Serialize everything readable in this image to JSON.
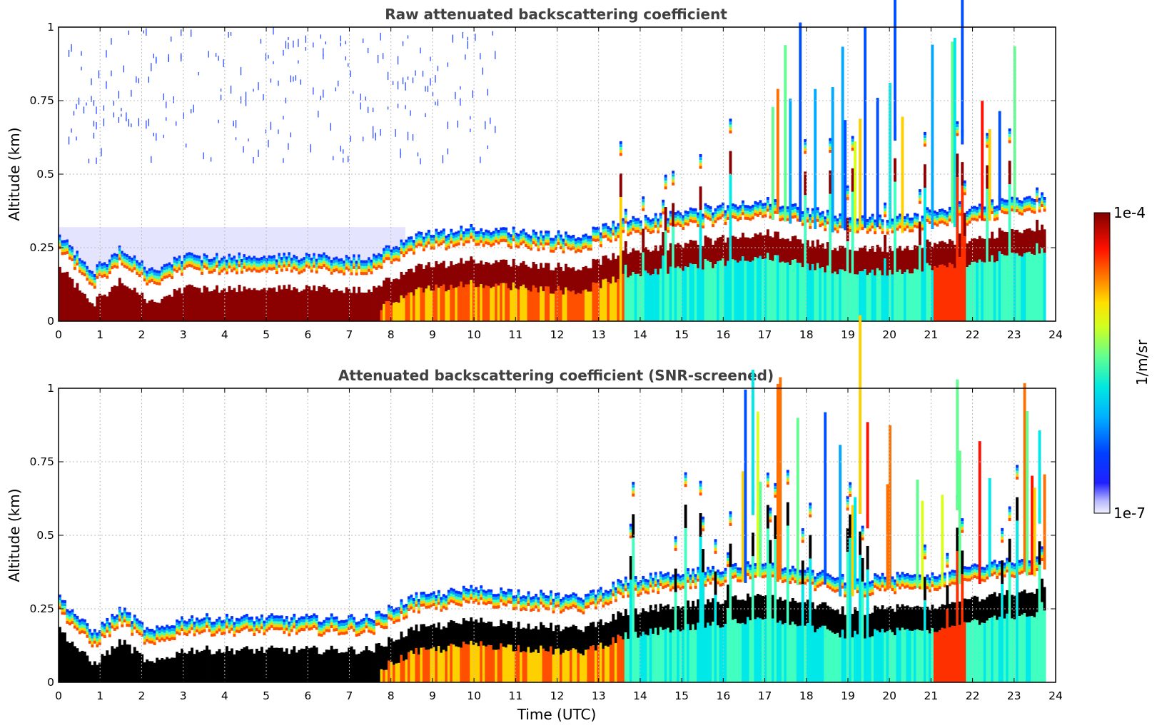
{
  "chart_data": [
    {
      "type": "heatmap",
      "title": "Raw attenuated backscattering coefficient",
      "xlabel": "",
      "ylabel": "Altitude (km)",
      "xlim": [
        0,
        24
      ],
      "ylim": [
        0,
        1
      ],
      "xticks": [
        "0",
        "1",
        "2",
        "3",
        "4",
        "5",
        "6",
        "7",
        "8",
        "9",
        "10",
        "11",
        "12",
        "13",
        "14",
        "15",
        "16",
        "17",
        "18",
        "19",
        "20",
        "21",
        "22",
        "23",
        "24"
      ],
      "yticks": [
        "0",
        "0.25",
        "0.5",
        "0.75",
        "1"
      ],
      "grid": true,
      "screening": "raw",
      "layer_top_km": [
        {
          "t": 0,
          "h": 0.24
        },
        {
          "t": 0.8,
          "h": 0.12
        },
        {
          "t": 1.5,
          "h": 0.2
        },
        {
          "t": 2.2,
          "h": 0.12
        },
        {
          "t": 3,
          "h": 0.17
        },
        {
          "t": 5,
          "h": 0.17
        },
        {
          "t": 7.5,
          "h": 0.17
        },
        {
          "t": 8.5,
          "h": 0.24
        },
        {
          "t": 10,
          "h": 0.27
        },
        {
          "t": 12.5,
          "h": 0.24
        },
        {
          "t": 13.7,
          "h": 0.3
        },
        {
          "t": 15.5,
          "h": 0.33
        },
        {
          "t": 17,
          "h": 0.36
        },
        {
          "t": 19,
          "h": 0.3
        },
        {
          "t": 21,
          "h": 0.32
        },
        {
          "t": 23.7,
          "h": 0.38
        }
      ]
    },
    {
      "type": "heatmap",
      "title": "Attenuated backscattering coefficient (SNR-screened)",
      "xlabel": "Time (UTC)",
      "ylabel": "Altitude (km)",
      "xlim": [
        0,
        24
      ],
      "ylim": [
        0,
        1
      ],
      "xticks": [
        "0",
        "1",
        "2",
        "3",
        "4",
        "5",
        "6",
        "7",
        "8",
        "9",
        "10",
        "11",
        "12",
        "13",
        "14",
        "15",
        "16",
        "17",
        "18",
        "19",
        "20",
        "21",
        "22",
        "23",
        "24"
      ],
      "yticks": [
        "0",
        "0.25",
        "0.5",
        "0.75",
        "1"
      ],
      "grid": true,
      "screening": "snr",
      "layer_top_km": [
        {
          "t": 0,
          "h": 0.24
        },
        {
          "t": 0.8,
          "h": 0.12
        },
        {
          "t": 1.5,
          "h": 0.2
        },
        {
          "t": 2.2,
          "h": 0.12
        },
        {
          "t": 3,
          "h": 0.17
        },
        {
          "t": 5,
          "h": 0.17
        },
        {
          "t": 7.5,
          "h": 0.17
        },
        {
          "t": 8.5,
          "h": 0.24
        },
        {
          "t": 10,
          "h": 0.27
        },
        {
          "t": 12.5,
          "h": 0.24
        },
        {
          "t": 13.7,
          "h": 0.3
        },
        {
          "t": 15.5,
          "h": 0.33
        },
        {
          "t": 17,
          "h": 0.36
        },
        {
          "t": 19,
          "h": 0.3
        },
        {
          "t": 21,
          "h": 0.32
        },
        {
          "t": 23.7,
          "h": 0.38
        }
      ]
    }
  ],
  "colorbar": {
    "label": "1/m/sr",
    "max_label": "1e-4",
    "min_label": "1e-7",
    "scale": "log",
    "range": [
      1e-07,
      0.0001
    ],
    "colormap": "jet"
  }
}
